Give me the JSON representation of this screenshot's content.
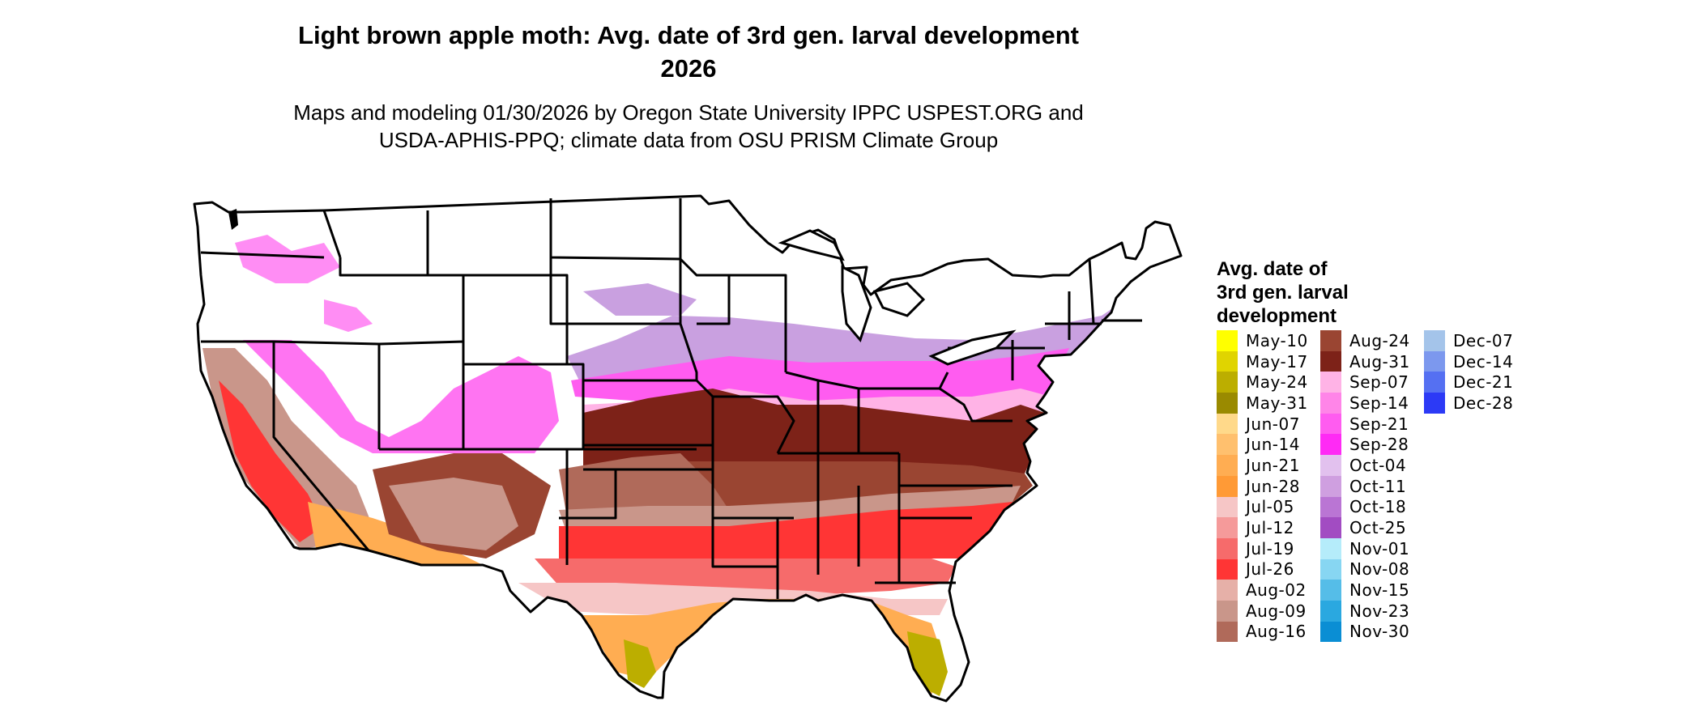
{
  "title_line1": "Light brown apple moth: Avg. date of 3rd gen. larval development",
  "title_line2": "2026",
  "subtitle_line1": "Maps and modeling 01/30/2026 by Oregon State University IPPC USPEST.ORG and",
  "subtitle_line2": "USDA-APHIS-PPQ; climate data from OSU PRISM Climate Group",
  "legend": {
    "title_lines": [
      "Avg. date of",
      "3rd gen. larval",
      "development"
    ],
    "columns": [
      [
        {
          "label": "May-10",
          "color": "#ffff00"
        },
        {
          "label": "May-17",
          "color": "#e0d400"
        },
        {
          "label": "May-24",
          "color": "#bcae00"
        },
        {
          "label": "May-31",
          "color": "#9a8a00"
        },
        {
          "label": "Jun-07",
          "color": "#ffd98a"
        },
        {
          "label": "Jun-14",
          "color": "#ffc06e"
        },
        {
          "label": "Jun-21",
          "color": "#ffad52"
        },
        {
          "label": "Jun-28",
          "color": "#ff9a36"
        },
        {
          "label": "Jul-05",
          "color": "#f6c6c6"
        },
        {
          "label": "Jul-12",
          "color": "#f59a9a"
        },
        {
          "label": "Jul-19",
          "color": "#f66b6b"
        },
        {
          "label": "Jul-26",
          "color": "#ff3535"
        },
        {
          "label": "Aug-02",
          "color": "#e6b0a8"
        },
        {
          "label": "Aug-09",
          "color": "#c9968a"
        },
        {
          "label": "Aug-16",
          "color": "#b06a5a"
        }
      ],
      [
        {
          "label": "Aug-24",
          "color": "#9a4532"
        },
        {
          "label": "Aug-31",
          "color": "#7d2218"
        },
        {
          "label": "Sep-07",
          "color": "#ffb3e6"
        },
        {
          "label": "Sep-14",
          "color": "#ff85e8"
        },
        {
          "label": "Sep-21",
          "color": "#ff5cf0"
        },
        {
          "label": "Sep-28",
          "color": "#ff2af5"
        },
        {
          "label": "Oct-04",
          "color": "#e2c1ee"
        },
        {
          "label": "Oct-11",
          "color": "#cf9fe0"
        },
        {
          "label": "Oct-18",
          "color": "#ba75d4"
        },
        {
          "label": "Oct-25",
          "color": "#a24cc2"
        },
        {
          "label": "Nov-01",
          "color": "#b5ecfa"
        },
        {
          "label": "Nov-08",
          "color": "#87d6f2"
        },
        {
          "label": "Nov-15",
          "color": "#55bde8"
        },
        {
          "label": "Nov-23",
          "color": "#2aa8e0"
        },
        {
          "label": "Nov-30",
          "color": "#0a8ed4"
        }
      ],
      [
        {
          "label": "Dec-07",
          "color": "#a4c4ea"
        },
        {
          "label": "Dec-14",
          "color": "#7c98ee"
        },
        {
          "label": "Dec-21",
          "color": "#5570f2"
        },
        {
          "label": "Dec-28",
          "color": "#2c3af6"
        }
      ]
    ]
  }
}
